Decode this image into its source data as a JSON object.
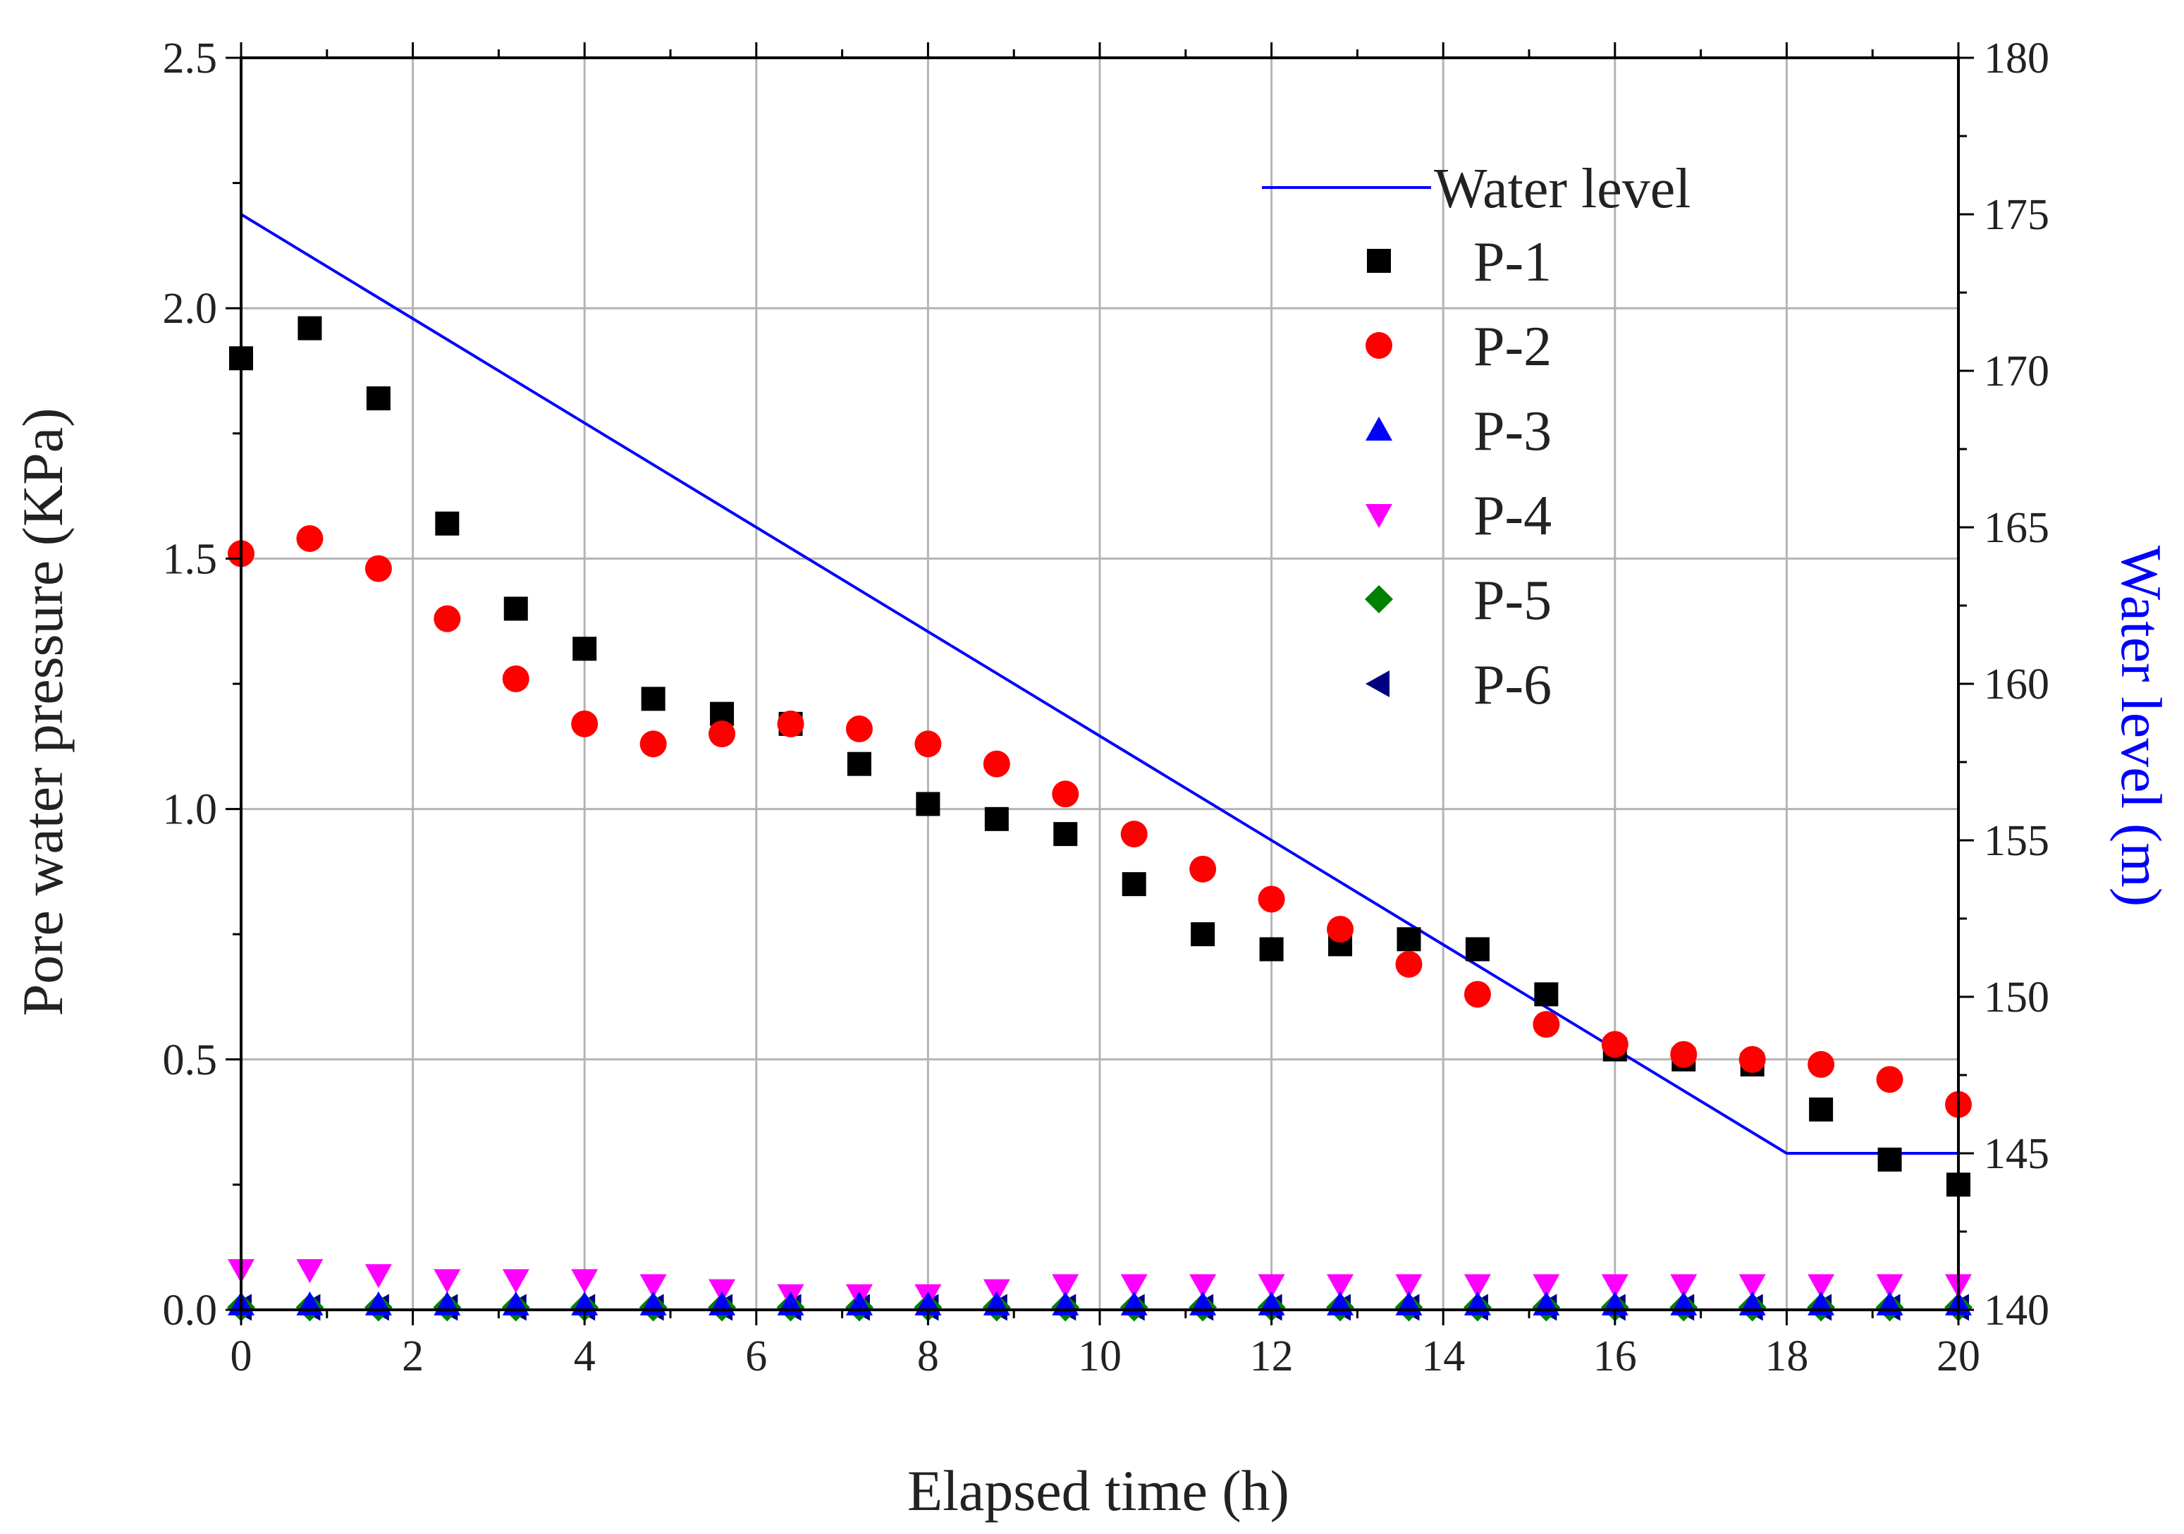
{
  "chart_data": {
    "type": "scatter",
    "xlabel": "Elapsed time (h)",
    "ylabel": "Pore water pressure (KPa)",
    "y2label": "Water level (m)",
    "xlim": [
      0,
      20
    ],
    "ylim": [
      0,
      2.5
    ],
    "y2lim": [
      140,
      180
    ],
    "grid": true,
    "legend_position": "top-right",
    "x_ticks": [
      0,
      2,
      4,
      6,
      8,
      10,
      12,
      14,
      16,
      18,
      20
    ],
    "x_tick_labels": [
      "0",
      "2",
      "4",
      "6",
      "8",
      "10",
      "12",
      "14",
      "16",
      "18",
      "20"
    ],
    "y_ticks": [
      0,
      0.5,
      1.0,
      1.5,
      2.0,
      2.5
    ],
    "y_tick_labels": [
      "0.0",
      "0.5",
      "1.0",
      "1.5",
      "2.0",
      "2.5"
    ],
    "y2_ticks": [
      140,
      145,
      150,
      155,
      160,
      165,
      170,
      175,
      180
    ],
    "y2_tick_labels": [
      "140",
      "145",
      "150",
      "155",
      "160",
      "165",
      "170",
      "175",
      "180"
    ],
    "x": [
      0,
      0.8,
      1.6,
      2.4,
      3.2,
      4.0,
      4.8,
      5.6,
      6.4,
      7.2,
      8.0,
      8.8,
      9.6,
      10.4,
      11.2,
      12.0,
      12.8,
      13.6,
      14.4,
      15.2,
      16.0,
      16.8,
      17.6,
      18.4,
      19.2,
      20.0
    ],
    "series": [
      {
        "name": "P-1",
        "marker": "square",
        "color": "#000000",
        "axis": "left",
        "values": [
          1.9,
          1.96,
          1.82,
          1.57,
          1.4,
          1.32,
          1.22,
          1.19,
          1.17,
          1.09,
          1.01,
          0.98,
          0.95,
          0.85,
          0.75,
          0.72,
          0.73,
          0.74,
          0.72,
          0.63,
          0.52,
          0.5,
          0.49,
          0.4,
          0.3,
          0.25
        ]
      },
      {
        "name": "P-2",
        "marker": "circle",
        "color": "#ff0000",
        "axis": "left",
        "values": [
          1.51,
          1.54,
          1.48,
          1.38,
          1.26,
          1.17,
          1.13,
          1.15,
          1.17,
          1.16,
          1.13,
          1.09,
          1.03,
          0.95,
          0.88,
          0.82,
          0.76,
          0.69,
          0.63,
          0.57,
          0.53,
          0.51,
          0.5,
          0.49,
          0.46,
          0.41
        ]
      },
      {
        "name": "P-3",
        "marker": "triangle-up",
        "color": "#0000ff",
        "axis": "left",
        "values": [
          0.01,
          0.01,
          0.01,
          0.01,
          0.01,
          0.01,
          0.01,
          0.01,
          0.01,
          0.01,
          0.01,
          0.01,
          0.01,
          0.01,
          0.01,
          0.01,
          0.01,
          0.01,
          0.01,
          0.01,
          0.01,
          0.01,
          0.01,
          0.01,
          0.01,
          0.01
        ]
      },
      {
        "name": "P-4",
        "marker": "triangle-down",
        "color": "#ff00ff",
        "axis": "left",
        "values": [
          0.08,
          0.08,
          0.07,
          0.06,
          0.06,
          0.06,
          0.05,
          0.04,
          0.03,
          0.03,
          0.03,
          0.04,
          0.05,
          0.05,
          0.05,
          0.05,
          0.05,
          0.05,
          0.05,
          0.05,
          0.05,
          0.05,
          0.05,
          0.05,
          0.05,
          0.05
        ]
      },
      {
        "name": "P-5",
        "marker": "diamond",
        "color": "#008000",
        "axis": "left",
        "values": [
          0.005,
          0.005,
          0.005,
          0.005,
          0.005,
          0.005,
          0.005,
          0.005,
          0.005,
          0.005,
          0.005,
          0.005,
          0.005,
          0.005,
          0.005,
          0.005,
          0.005,
          0.005,
          0.005,
          0.005,
          0.005,
          0.005,
          0.005,
          0.005,
          0.005,
          0.005
        ]
      },
      {
        "name": "P-6",
        "marker": "triangle-left",
        "color": "#000080",
        "axis": "left",
        "values": [
          0.005,
          0.005,
          0.005,
          0.005,
          0.005,
          0.005,
          0.005,
          0.005,
          0.005,
          0.005,
          0.005,
          0.005,
          0.005,
          0.005,
          0.005,
          0.005,
          0.005,
          0.005,
          0.005,
          0.005,
          0.005,
          0.005,
          0.005,
          0.005,
          0.005,
          0.005
        ]
      }
    ],
    "line_series": {
      "name": "Water level",
      "color": "#0000ff",
      "axis": "right",
      "x": [
        0,
        18,
        20
      ],
      "values": [
        175,
        145,
        145
      ]
    },
    "legend": [
      "Water level",
      "P-1",
      "P-2",
      "P-3",
      "P-4",
      "P-5",
      "P-6"
    ]
  }
}
